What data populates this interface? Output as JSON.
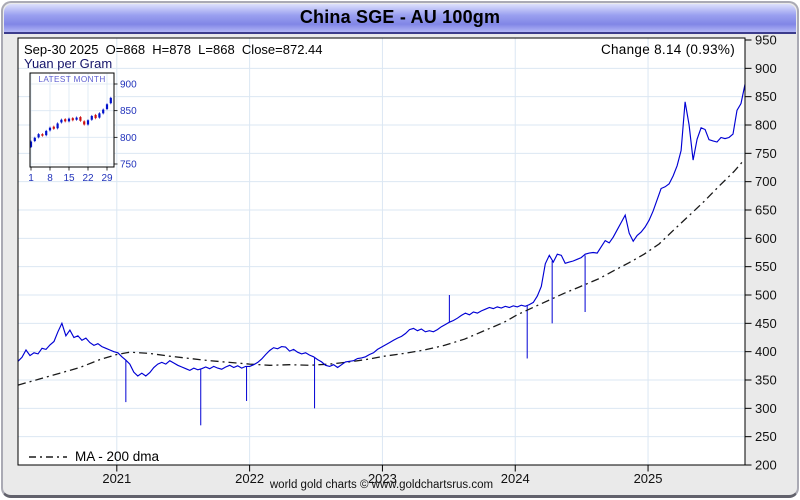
{
  "window": {
    "title": "China SGE - AU 100gm"
  },
  "info": {
    "ohlc_line": "Sep-30 2025  O=868  H=878  L=868  Close=872.44",
    "unit_label": "Yuan per Gram",
    "change_label": "Change 8.14 (0.93%)"
  },
  "legend": {
    "ma_label": "MA - 200 dma"
  },
  "footer": {
    "credit": "world gold charts © www.goldchartsrus.com"
  },
  "colors": {
    "price_line": "#0000d4",
    "ma_line": "#1a1a1a",
    "candle_up": "#0011cc",
    "candle_down": "#cc1111",
    "grid": "#dbe7f3",
    "axis_text": "#111111",
    "inset_text": "#2233bb",
    "inset_title_text": "#5c5cd0"
  },
  "chart_data": {
    "type": "line",
    "title": "China SGE - AU 100gm",
    "ylabel": "Yuan per Gram",
    "legend_position": "bottom-left",
    "x_axis": {
      "min_year": 2020.256,
      "max_year": 2025.73,
      "ticks": [
        2021,
        2022,
        2023,
        2024,
        2025
      ],
      "grid": true
    },
    "y_axis": {
      "min": 200,
      "max": 950,
      "ticks": [
        200,
        250,
        300,
        350,
        400,
        450,
        500,
        550,
        600,
        650,
        700,
        750,
        800,
        850,
        900,
        950
      ],
      "side": "right",
      "grid": true
    },
    "series": [
      {
        "name": "SGE AU 100gm price (Yuan/gram)",
        "style": "solid",
        "start_year": 2020.256,
        "step_years": 0.03003,
        "values": [
          383,
          390,
          403,
          393,
          398,
          396,
          406,
          404,
          412,
          418,
          435,
          450,
          428,
          438,
          425,
          428,
          420,
          424,
          416,
          411,
          414,
          409,
          406,
          403,
          400,
          398,
          391,
          385,
          378,
          364,
          357,
          362,
          357,
          363,
          372,
          378,
          381,
          378,
          384,
          380,
          376,
          373,
          370,
          367,
          371,
          368,
          370,
          373,
          370,
          374,
          371,
          369,
          373,
          376,
          372,
          375,
          371,
          374,
          374,
          377,
          381,
          387,
          395,
          402,
          407,
          405,
          409,
          408,
          401,
          404,
          399,
          396,
          398,
          394,
          391,
          386,
          382,
          376,
          374,
          377,
          372,
          377,
          382,
          383,
          384,
          388,
          389,
          391,
          395,
          398,
          404,
          408,
          412,
          416,
          420,
          424,
          427,
          432,
          439,
          441,
          437,
          440,
          435,
          437,
          435,
          439,
          444,
          448,
          452,
          455,
          459,
          464,
          468,
          465,
          470,
          468,
          472,
          475,
          478,
          476,
          479,
          477,
          480,
          478,
          481,
          479,
          482,
          480,
          483,
          487,
          498,
          515,
          555,
          570,
          558,
          572,
          570,
          556,
          558,
          560,
          563,
          566,
          572,
          574,
          575,
          574,
          585,
          596,
          592,
          602,
          615,
          628,
          641,
          609,
          595,
          605,
          611,
          620,
          632,
          648,
          668,
          688,
          691,
          696,
          710,
          728,
          755,
          841,
          800,
          738,
          775,
          795,
          792,
          774,
          772,
          770,
          778,
          776,
          778,
          784,
          826,
          838,
          872
        ]
      },
      {
        "name": "MA - 200 dma",
        "style": "dash-dot",
        "points": [
          [
            2020.256,
            341
          ],
          [
            2020.421,
            352
          ],
          [
            2020.571,
            362
          ],
          [
            2020.722,
            372
          ],
          [
            2020.872,
            386
          ],
          [
            2021.0,
            395
          ],
          [
            2021.098,
            399
          ],
          [
            2021.248,
            397
          ],
          [
            2021.398,
            392
          ],
          [
            2021.549,
            388
          ],
          [
            2021.699,
            384
          ],
          [
            2021.85,
            381
          ],
          [
            2022.0,
            378
          ],
          [
            2022.15,
            376
          ],
          [
            2022.301,
            377
          ],
          [
            2022.451,
            376
          ],
          [
            2022.602,
            378
          ],
          [
            2022.752,
            382
          ],
          [
            2022.902,
            387
          ],
          [
            2023.015,
            392
          ],
          [
            2023.165,
            397
          ],
          [
            2023.316,
            403
          ],
          [
            2023.466,
            411
          ],
          [
            2023.617,
            422
          ],
          [
            2023.767,
            437
          ],
          [
            2023.917,
            452
          ],
          [
            2024.015,
            465
          ],
          [
            2024.143,
            479
          ],
          [
            2024.256,
            491
          ],
          [
            2024.368,
            503
          ],
          [
            2024.481,
            514
          ],
          [
            2024.632,
            529
          ],
          [
            2024.744,
            543
          ],
          [
            2024.857,
            557
          ],
          [
            2024.97,
            572
          ],
          [
            2025.083,
            590
          ],
          [
            2025.195,
            615
          ],
          [
            2025.308,
            640
          ],
          [
            2025.421,
            665
          ],
          [
            2025.534,
            692
          ],
          [
            2025.647,
            718
          ],
          [
            2025.722,
            738
          ]
        ]
      }
    ],
    "glitch_spikes": [
      [
        2021.068,
        385,
        311
      ],
      [
        2021.632,
        369,
        270
      ],
      [
        2021.977,
        373,
        313
      ],
      [
        2022.489,
        389,
        300
      ],
      [
        2023.504,
        452,
        500
      ],
      [
        2024.09,
        481,
        388
      ],
      [
        2024.278,
        560,
        450
      ],
      [
        2024.526,
        570,
        470
      ]
    ],
    "inset": {
      "type": "candlestick",
      "title": "LATEST MONTH",
      "x_ticks": [
        1,
        8,
        15,
        22,
        29
      ],
      "x_tick_indices": [
        0,
        5,
        10,
        15,
        20
      ],
      "y_ticks": [
        750,
        800,
        850,
        900
      ],
      "y_min": 744,
      "y_max": 920,
      "candles": [
        [
          1,
          782,
          792
        ],
        [
          2,
          793,
          799
        ],
        [
          3,
          800,
          806
        ],
        [
          4,
          806,
          803
        ],
        [
          5,
          804,
          812
        ],
        [
          8,
          813,
          818
        ],
        [
          9,
          820,
          816
        ],
        [
          10,
          817,
          826
        ],
        [
          11,
          828,
          833
        ],
        [
          12,
          834,
          830
        ],
        [
          15,
          830,
          835
        ],
        [
          16,
          836,
          832
        ],
        [
          17,
          833,
          837
        ],
        [
          18,
          838,
          831
        ],
        [
          19,
          830,
          824
        ],
        [
          22,
          824,
          832
        ],
        [
          23,
          833,
          840
        ],
        [
          24,
          842,
          836
        ],
        [
          25,
          837,
          845
        ],
        [
          26,
          845,
          852
        ],
        [
          29,
          853,
          862
        ],
        [
          30,
          864,
          874
        ]
      ]
    }
  }
}
